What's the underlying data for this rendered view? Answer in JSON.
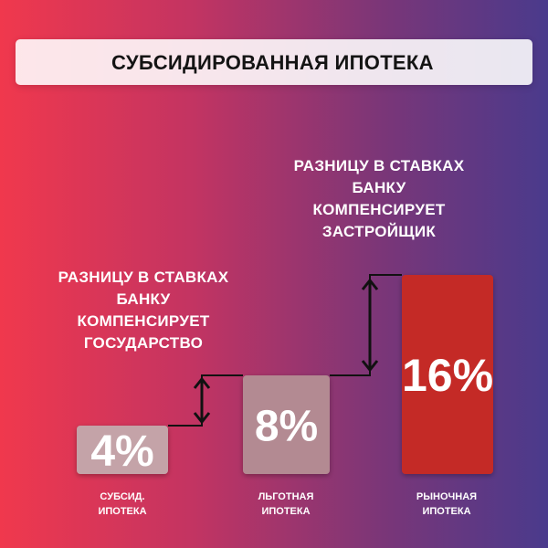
{
  "title": "СУБСИДИРОВАННАЯ ИПОТЕКА",
  "callout_top": [
    "РАЗНИЦУ В СТАВКАХ",
    "БАНКУ",
    "КОМПЕНСИРУЕТ",
    "ЗАСТРОЙЩИК"
  ],
  "callout_left": [
    "РАЗНИЦУ В СТАВКАХ",
    "БАНКУ",
    "КОМПЕНСИРУЕТ",
    "ГОСУДАРСТВО"
  ],
  "colors": {
    "bar_light": "#c4a3a8",
    "bar_mid": "#b38a92",
    "bar_market": "#c42a27",
    "title_bg": "#ffffff",
    "text": "#ffffff"
  },
  "chart_data": {
    "type": "bar",
    "categories": [
      [
        "СУБСИД.",
        "ИПОТЕКА"
      ],
      [
        "ЛЬГОТНАЯ",
        "ИПОТЕКА"
      ],
      [
        "РЫНОЧНАЯ",
        "ИПОТЕКА"
      ]
    ],
    "values": [
      4,
      8,
      16
    ],
    "value_labels": [
      "4%",
      "8%",
      "16%"
    ],
    "unit": "%"
  }
}
